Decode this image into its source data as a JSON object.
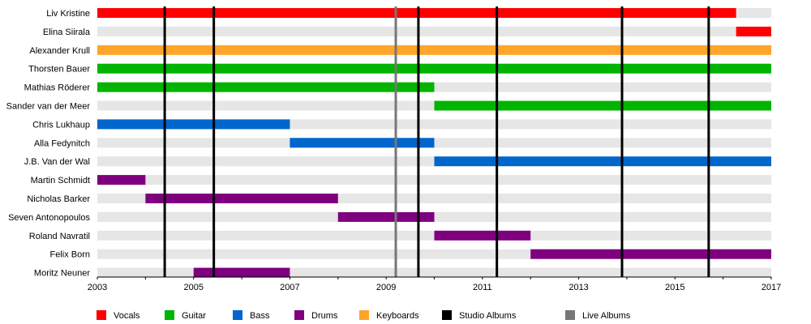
{
  "chart_data": {
    "type": "timeline",
    "x_range": [
      2003,
      2017
    ],
    "x_ticks": [
      "2003",
      "2005",
      "2007",
      "2009",
      "2011",
      "2013",
      "2015",
      "2017"
    ],
    "members": [
      {
        "name": "Liv Kristine",
        "stripe": true
      },
      {
        "name": "Elina Siirala",
        "stripe": true
      },
      {
        "name": "Alexander Krull",
        "stripe": false
      },
      {
        "name": "Thorsten Bauer",
        "stripe": true
      },
      {
        "name": "Mathias Röderer",
        "stripe": true
      },
      {
        "name": "Sander van der Meer",
        "stripe": true
      },
      {
        "name": "Chris Lukhaup",
        "stripe": true
      },
      {
        "name": "Alla Fedynitch",
        "stripe": true
      },
      {
        "name": "J.B. Van der Wal",
        "stripe": true
      },
      {
        "name": "Martin Schmidt",
        "stripe": true
      },
      {
        "name": "Nicholas Barker",
        "stripe": true
      },
      {
        "name": "Seven Antonopoulos",
        "stripe": true
      },
      {
        "name": "Roland Navratil",
        "stripe": true
      },
      {
        "name": "Felix Born",
        "stripe": true
      },
      {
        "name": "Moritz Neuner",
        "stripe": true
      }
    ],
    "bars": [
      {
        "member": 0,
        "role": "vocals",
        "start": 2003.0,
        "end": 2016.27
      },
      {
        "member": 1,
        "role": "vocals",
        "start": 2016.27,
        "end": 2017.0
      },
      {
        "member": 2,
        "role": "keyboards",
        "start": 2003.0,
        "end": 2017.0
      },
      {
        "member": 3,
        "role": "guitar",
        "start": 2003.0,
        "end": 2017.0
      },
      {
        "member": 4,
        "role": "guitar",
        "start": 2003.0,
        "end": 2010.0
      },
      {
        "member": 5,
        "role": "guitar",
        "start": 2010.0,
        "end": 2017.0
      },
      {
        "member": 6,
        "role": "bass",
        "start": 2003.0,
        "end": 2007.0
      },
      {
        "member": 7,
        "role": "bass",
        "start": 2007.0,
        "end": 2010.0
      },
      {
        "member": 8,
        "role": "bass",
        "start": 2010.0,
        "end": 2017.0
      },
      {
        "member": 9,
        "role": "drums",
        "start": 2003.0,
        "end": 2004.0
      },
      {
        "member": 10,
        "role": "drums",
        "start": 2004.0,
        "end": 2008.0
      },
      {
        "member": 11,
        "role": "drums",
        "start": 2008.0,
        "end": 2010.0
      },
      {
        "member": 12,
        "role": "drums",
        "start": 2010.0,
        "end": 2012.0
      },
      {
        "member": 13,
        "role": "drums",
        "start": 2012.0,
        "end": 2017.0
      },
      {
        "member": 14,
        "role": "drums",
        "start": 2005.0,
        "end": 2007.0
      }
    ],
    "studio_albums": [
      2004.4,
      2005.42,
      2009.67,
      2011.3,
      2013.9,
      2015.7
    ],
    "live_albums": [
      2009.2
    ],
    "colors": {
      "vocals": "#ff0000",
      "guitar": "#00b400",
      "bass": "#0066cc",
      "drums": "#7f007f",
      "keyboards": "#ffa52a",
      "studio": "#000000",
      "live": "#777777",
      "stripe": "#e6e6e6"
    },
    "legend": [
      {
        "key": "vocals",
        "label": "Vocals"
      },
      {
        "key": "guitar",
        "label": "Guitar"
      },
      {
        "key": "bass",
        "label": "Bass"
      },
      {
        "key": "drums",
        "label": "Drums"
      },
      {
        "key": "keyboards",
        "label": "Keyboards"
      },
      {
        "key": "studio",
        "label": "Studio Albums"
      },
      {
        "key": "live",
        "label": "Live Albums"
      }
    ]
  }
}
